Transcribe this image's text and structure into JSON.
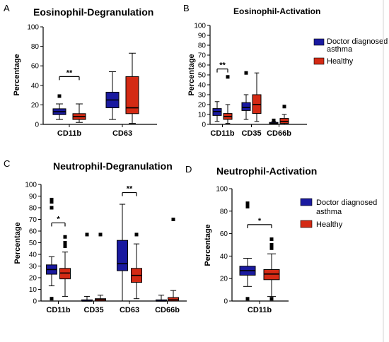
{
  "colors": {
    "asthma": "#1a1aa0",
    "healthy": "#d42a14",
    "axis": "#000000"
  },
  "legend": {
    "asthma": "Doctor diagnosed\nasthma",
    "healthy": "Healthy"
  },
  "chart_data": [
    {
      "panel": "A",
      "type": "box",
      "title": "Eosinophil-Degranulation",
      "ylabel": "Percentage",
      "ylim": [
        0,
        100
      ],
      "yticks": [
        0,
        20,
        40,
        60,
        80,
        100
      ],
      "categories": [
        "CD11b",
        "CD63"
      ],
      "series": [
        {
          "key": "asthma",
          "boxes": [
            {
              "min": 5,
              "q1": 10,
              "median": 13,
              "q3": 16,
              "max": 21,
              "outliers": [
                29
              ]
            },
            {
              "min": 5,
              "q1": 17,
              "median": 25,
              "q3": 33,
              "max": 54,
              "outliers": []
            }
          ]
        },
        {
          "key": "healthy",
          "boxes": [
            {
              "min": 2,
              "q1": 5,
              "median": 8,
              "q3": 11,
              "max": 21,
              "outliers": []
            },
            {
              "min": 1,
              "q1": 11,
              "median": 17,
              "q3": 49,
              "max": 73,
              "outliers": []
            }
          ]
        }
      ],
      "significance": [
        {
          "category": "CD11b",
          "label": "**",
          "level": 49
        }
      ]
    },
    {
      "panel": "B",
      "type": "box",
      "title": "Eosinophil-Activation",
      "ylabel": "Percentage",
      "ylim": [
        0,
        100
      ],
      "yticks": [
        0,
        10,
        20,
        30,
        40,
        50,
        60,
        70,
        80,
        90,
        100
      ],
      "categories": [
        "CD11b",
        "CD35",
        "CD66b"
      ],
      "series": [
        {
          "key": "asthma",
          "boxes": [
            {
              "min": 3,
              "q1": 9,
              "median": 13,
              "q3": 16,
              "max": 23,
              "outliers": []
            },
            {
              "min": 5,
              "q1": 14,
              "median": 17,
              "q3": 22,
              "max": 30,
              "outliers": [
                52
              ]
            },
            {
              "min": 0,
              "q1": 0.5,
              "median": 1,
              "q3": 2,
              "max": 3,
              "outliers": [
                4
              ]
            }
          ]
        },
        {
          "key": "healthy",
          "boxes": [
            {
              "min": 1,
              "q1": 5,
              "median": 8,
              "q3": 11,
              "max": 20,
              "outliers": [
                48
              ]
            },
            {
              "min": 3,
              "q1": 11,
              "median": 20,
              "q3": 30,
              "max": 52,
              "outliers": []
            },
            {
              "min": 0,
              "q1": 1,
              "median": 3,
              "q3": 6,
              "max": 10,
              "outliers": [
                18
              ]
            }
          ]
        }
      ],
      "significance": [
        {
          "category": "CD11b",
          "label": "**",
          "level": 56
        }
      ]
    },
    {
      "panel": "C",
      "type": "box",
      "title": "Neutrophil-Degranulation",
      "ylabel": "Percentage",
      "ylim": [
        0,
        100
      ],
      "yticks": [
        0,
        10,
        20,
        30,
        40,
        50,
        60,
        70,
        80,
        90,
        100
      ],
      "categories": [
        "CD11b",
        "CD35",
        "CD63",
        "CD66b"
      ],
      "series": [
        {
          "key": "asthma",
          "boxes": [
            {
              "min": 13,
              "q1": 23,
              "median": 27,
              "q3": 31,
              "max": 38,
              "outliers": [
                2,
                87,
                85,
                80
              ]
            },
            {
              "min": 0,
              "q1": 0,
              "median": 0,
              "q3": 1,
              "max": 4,
              "outliers": [
                57
              ]
            },
            {
              "min": 0,
              "q1": 26,
              "median": 32,
              "q3": 52,
              "max": 83,
              "outliers": []
            },
            {
              "min": 0,
              "q1": 0,
              "median": 0,
              "q3": 1,
              "max": 5,
              "outliers": []
            }
          ]
        },
        {
          "key": "healthy",
          "boxes": [
            {
              "min": 4,
              "q1": 19,
              "median": 24,
              "q3": 28,
              "max": 42,
              "outliers": [
                55,
                50,
                47
              ]
            },
            {
              "min": 0,
              "q1": 0,
              "median": 1,
              "q3": 2,
              "max": 5,
              "outliers": [
                57
              ]
            },
            {
              "min": 2,
              "q1": 16,
              "median": 22,
              "q3": 28,
              "max": 49,
              "outliers": [
                57
              ]
            },
            {
              "min": 0,
              "q1": 0,
              "median": 1,
              "q3": 3,
              "max": 9,
              "outliers": [
                70
              ]
            }
          ]
        }
      ],
      "significance": [
        {
          "category": "CD11b",
          "label": "*",
          "level": 67
        },
        {
          "category": "CD63",
          "label": "**",
          "level": 93
        }
      ]
    },
    {
      "panel": "D",
      "type": "box",
      "title": "Neutrophil-Activation",
      "ylabel": "Percentage",
      "ylim": [
        0,
        100
      ],
      "yticks": [
        0,
        20,
        40,
        60,
        80,
        100
      ],
      "categories": [
        "CD11b"
      ],
      "series": [
        {
          "key": "asthma",
          "boxes": [
            {
              "min": 13,
              "q1": 23,
              "median": 27,
              "q3": 31,
              "max": 38,
              "outliers": [
                2,
                87,
                84
              ]
            }
          ]
        },
        {
          "key": "healthy",
          "boxes": [
            {
              "min": 4,
              "q1": 19,
              "median": 24,
              "q3": 28,
              "max": 42,
              "outliers": [
                2,
                55,
                50,
                47
              ]
            }
          ]
        }
      ],
      "significance": [
        {
          "category": "CD11b",
          "label": "*",
          "level": 68
        }
      ]
    }
  ]
}
